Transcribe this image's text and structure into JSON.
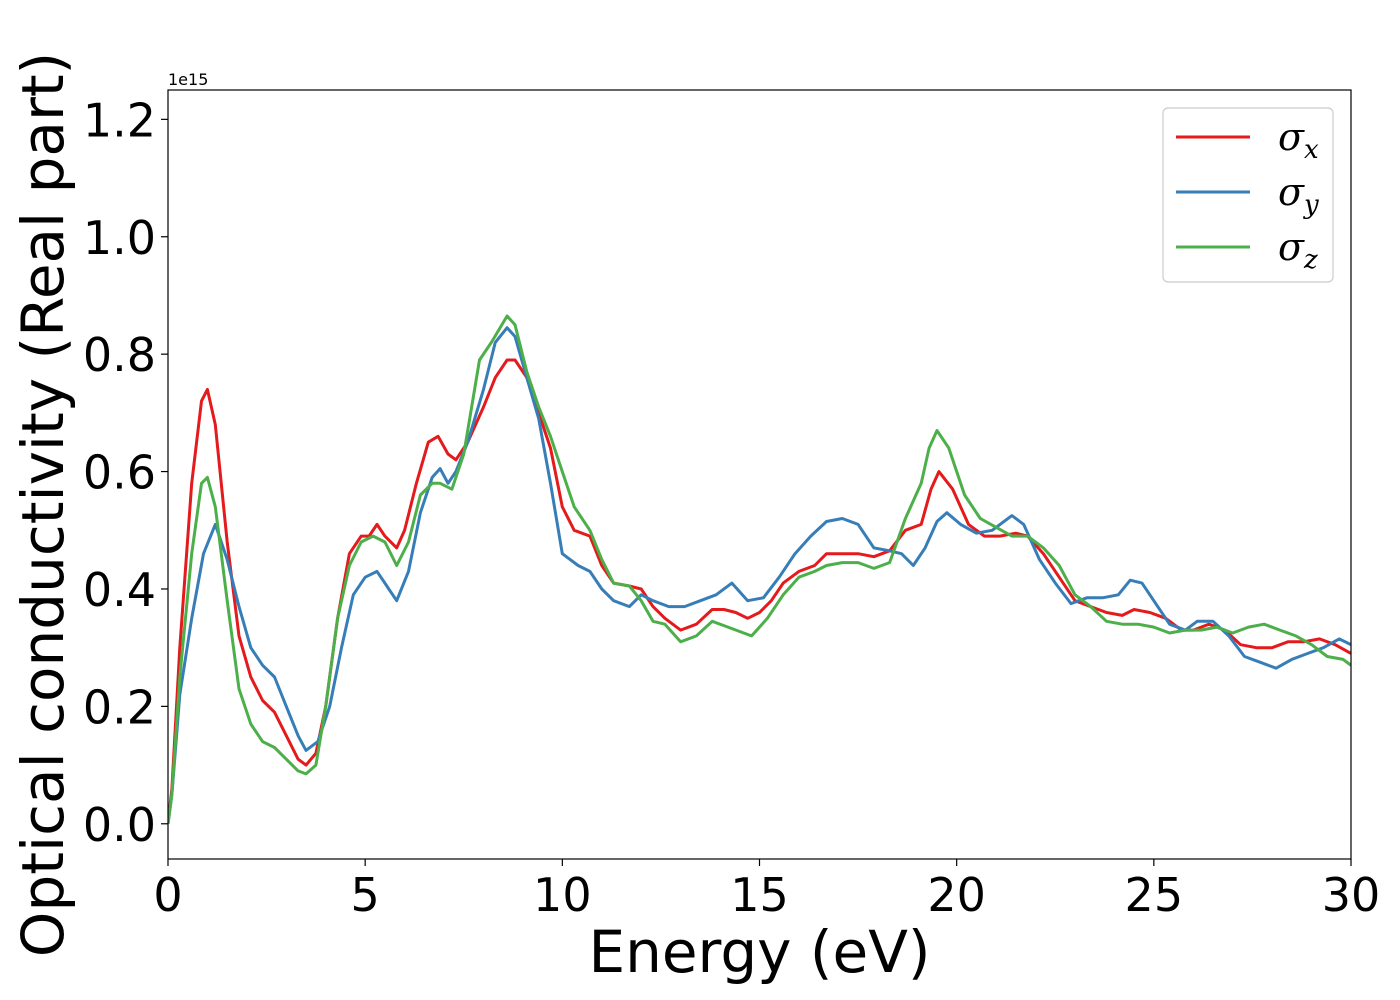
{
  "chart_data": {
    "type": "line",
    "xlabel": "Energy (eV)",
    "ylabel": "Optical conductivity (Real part)",
    "offset_text": "1e15",
    "xlim": [
      0,
      30
    ],
    "ylim": [
      -0.06,
      1.25
    ],
    "xticks": [
      0,
      5,
      10,
      15,
      20,
      25,
      30
    ],
    "xtick_labels": [
      "0",
      "5",
      "10",
      "15",
      "20",
      "25",
      "30"
    ],
    "yticks": [
      0.0,
      0.2,
      0.4,
      0.6,
      0.8,
      1.0,
      1.2
    ],
    "ytick_labels": [
      "0.0",
      "0.2",
      "0.4",
      "0.6",
      "0.8",
      "1.0",
      "1.2"
    ],
    "legend_position": "top-right",
    "grid": false,
    "series": [
      {
        "name": "σx",
        "symbol": "σ",
        "sub": "x",
        "color": "#e41a1c",
        "points": [
          [
            0,
            0.0
          ],
          [
            0.1,
            0.06
          ],
          [
            0.3,
            0.3
          ],
          [
            0.6,
            0.58
          ],
          [
            0.85,
            0.72
          ],
          [
            1.0,
            0.74
          ],
          [
            1.2,
            0.68
          ],
          [
            1.5,
            0.48
          ],
          [
            1.8,
            0.32
          ],
          [
            2.1,
            0.25
          ],
          [
            2.4,
            0.21
          ],
          [
            2.7,
            0.19
          ],
          [
            3.0,
            0.15
          ],
          [
            3.3,
            0.11
          ],
          [
            3.5,
            0.1
          ],
          [
            3.75,
            0.12
          ],
          [
            4.0,
            0.2
          ],
          [
            4.3,
            0.35
          ],
          [
            4.6,
            0.46
          ],
          [
            4.9,
            0.49
          ],
          [
            5.1,
            0.49
          ],
          [
            5.3,
            0.51
          ],
          [
            5.5,
            0.49
          ],
          [
            5.8,
            0.47
          ],
          [
            6.0,
            0.5
          ],
          [
            6.3,
            0.58
          ],
          [
            6.6,
            0.65
          ],
          [
            6.85,
            0.66
          ],
          [
            7.1,
            0.63
          ],
          [
            7.3,
            0.62
          ],
          [
            7.6,
            0.65
          ],
          [
            8.0,
            0.71
          ],
          [
            8.3,
            0.76
          ],
          [
            8.6,
            0.79
          ],
          [
            8.8,
            0.79
          ],
          [
            9.1,
            0.76
          ],
          [
            9.4,
            0.7
          ],
          [
            9.7,
            0.64
          ],
          [
            10.0,
            0.54
          ],
          [
            10.3,
            0.5
          ],
          [
            10.7,
            0.49
          ],
          [
            11.0,
            0.44
          ],
          [
            11.3,
            0.41
          ],
          [
            11.7,
            0.405
          ],
          [
            12.0,
            0.4
          ],
          [
            12.3,
            0.37
          ],
          [
            12.6,
            0.35
          ],
          [
            13.0,
            0.33
          ],
          [
            13.4,
            0.34
          ],
          [
            13.8,
            0.365
          ],
          [
            14.1,
            0.365
          ],
          [
            14.4,
            0.36
          ],
          [
            14.7,
            0.35
          ],
          [
            15.0,
            0.36
          ],
          [
            15.3,
            0.38
          ],
          [
            15.6,
            0.41
          ],
          [
            16.0,
            0.43
          ],
          [
            16.4,
            0.44
          ],
          [
            16.7,
            0.46
          ],
          [
            17.1,
            0.46
          ],
          [
            17.5,
            0.46
          ],
          [
            17.9,
            0.455
          ],
          [
            18.3,
            0.465
          ],
          [
            18.7,
            0.5
          ],
          [
            19.1,
            0.51
          ],
          [
            19.35,
            0.57
          ],
          [
            19.55,
            0.6
          ],
          [
            19.9,
            0.57
          ],
          [
            20.3,
            0.51
          ],
          [
            20.7,
            0.49
          ],
          [
            21.1,
            0.49
          ],
          [
            21.5,
            0.495
          ],
          [
            21.8,
            0.49
          ],
          [
            22.2,
            0.46
          ],
          [
            22.6,
            0.42
          ],
          [
            23.0,
            0.38
          ],
          [
            23.4,
            0.37
          ],
          [
            23.8,
            0.36
          ],
          [
            24.2,
            0.355
          ],
          [
            24.5,
            0.365
          ],
          [
            24.9,
            0.36
          ],
          [
            25.3,
            0.35
          ],
          [
            25.7,
            0.33
          ],
          [
            26.0,
            0.33
          ],
          [
            26.4,
            0.34
          ],
          [
            26.8,
            0.33
          ],
          [
            27.2,
            0.305
          ],
          [
            27.6,
            0.3
          ],
          [
            28.0,
            0.3
          ],
          [
            28.4,
            0.31
          ],
          [
            28.8,
            0.31
          ],
          [
            29.2,
            0.315
          ],
          [
            29.6,
            0.305
          ],
          [
            30.0,
            0.29
          ]
        ]
      },
      {
        "name": "σy",
        "symbol": "σ",
        "sub": "y",
        "color": "#377eb8",
        "points": [
          [
            0,
            0.0
          ],
          [
            0.1,
            0.05
          ],
          [
            0.3,
            0.22
          ],
          [
            0.6,
            0.35
          ],
          [
            0.9,
            0.46
          ],
          [
            1.2,
            0.51
          ],
          [
            1.5,
            0.45
          ],
          [
            1.8,
            0.37
          ],
          [
            2.1,
            0.3
          ],
          [
            2.4,
            0.27
          ],
          [
            2.7,
            0.25
          ],
          [
            3.0,
            0.2
          ],
          [
            3.3,
            0.15
          ],
          [
            3.5,
            0.125
          ],
          [
            3.8,
            0.14
          ],
          [
            4.1,
            0.2
          ],
          [
            4.4,
            0.3
          ],
          [
            4.7,
            0.39
          ],
          [
            5.0,
            0.42
          ],
          [
            5.3,
            0.43
          ],
          [
            5.6,
            0.4
          ],
          [
            5.8,
            0.38
          ],
          [
            6.1,
            0.43
          ],
          [
            6.4,
            0.53
          ],
          [
            6.7,
            0.59
          ],
          [
            6.9,
            0.605
          ],
          [
            7.1,
            0.58
          ],
          [
            7.3,
            0.6
          ],
          [
            7.6,
            0.65
          ],
          [
            8.0,
            0.74
          ],
          [
            8.3,
            0.82
          ],
          [
            8.6,
            0.845
          ],
          [
            8.8,
            0.83
          ],
          [
            9.1,
            0.76
          ],
          [
            9.4,
            0.69
          ],
          [
            9.7,
            0.58
          ],
          [
            10.0,
            0.46
          ],
          [
            10.4,
            0.44
          ],
          [
            10.7,
            0.43
          ],
          [
            11.0,
            0.4
          ],
          [
            11.3,
            0.38
          ],
          [
            11.7,
            0.37
          ],
          [
            12.0,
            0.39
          ],
          [
            12.3,
            0.38
          ],
          [
            12.7,
            0.37
          ],
          [
            13.1,
            0.37
          ],
          [
            13.5,
            0.38
          ],
          [
            13.9,
            0.39
          ],
          [
            14.3,
            0.41
          ],
          [
            14.7,
            0.38
          ],
          [
            15.1,
            0.385
          ],
          [
            15.5,
            0.42
          ],
          [
            15.9,
            0.46
          ],
          [
            16.3,
            0.49
          ],
          [
            16.7,
            0.515
          ],
          [
            17.1,
            0.52
          ],
          [
            17.5,
            0.51
          ],
          [
            17.9,
            0.47
          ],
          [
            18.3,
            0.465
          ],
          [
            18.6,
            0.46
          ],
          [
            18.9,
            0.44
          ],
          [
            19.2,
            0.47
          ],
          [
            19.5,
            0.515
          ],
          [
            19.75,
            0.53
          ],
          [
            20.1,
            0.51
          ],
          [
            20.5,
            0.495
          ],
          [
            20.9,
            0.5
          ],
          [
            21.4,
            0.525
          ],
          [
            21.7,
            0.51
          ],
          [
            22.1,
            0.45
          ],
          [
            22.5,
            0.41
          ],
          [
            22.9,
            0.375
          ],
          [
            23.3,
            0.385
          ],
          [
            23.7,
            0.385
          ],
          [
            24.1,
            0.39
          ],
          [
            24.4,
            0.415
          ],
          [
            24.7,
            0.41
          ],
          [
            25.0,
            0.38
          ],
          [
            25.4,
            0.34
          ],
          [
            25.8,
            0.33
          ],
          [
            26.1,
            0.345
          ],
          [
            26.5,
            0.345
          ],
          [
            26.9,
            0.32
          ],
          [
            27.3,
            0.285
          ],
          [
            27.7,
            0.275
          ],
          [
            28.1,
            0.265
          ],
          [
            28.5,
            0.28
          ],
          [
            28.9,
            0.29
          ],
          [
            29.3,
            0.3
          ],
          [
            29.7,
            0.315
          ],
          [
            30.0,
            0.305
          ]
        ]
      },
      {
        "name": "σz",
        "symbol": "σ",
        "sub": "z",
        "color": "#4daf4a",
        "points": [
          [
            0,
            0.0
          ],
          [
            0.1,
            0.05
          ],
          [
            0.3,
            0.25
          ],
          [
            0.6,
            0.46
          ],
          [
            0.85,
            0.58
          ],
          [
            1.0,
            0.59
          ],
          [
            1.2,
            0.54
          ],
          [
            1.5,
            0.38
          ],
          [
            1.8,
            0.23
          ],
          [
            2.1,
            0.17
          ],
          [
            2.4,
            0.14
          ],
          [
            2.7,
            0.13
          ],
          [
            3.0,
            0.11
          ],
          [
            3.3,
            0.09
          ],
          [
            3.5,
            0.085
          ],
          [
            3.75,
            0.1
          ],
          [
            4.0,
            0.2
          ],
          [
            4.3,
            0.35
          ],
          [
            4.6,
            0.44
          ],
          [
            4.9,
            0.48
          ],
          [
            5.2,
            0.49
          ],
          [
            5.5,
            0.48
          ],
          [
            5.8,
            0.44
          ],
          [
            6.1,
            0.48
          ],
          [
            6.4,
            0.56
          ],
          [
            6.7,
            0.58
          ],
          [
            6.9,
            0.58
          ],
          [
            7.2,
            0.57
          ],
          [
            7.5,
            0.63
          ],
          [
            7.9,
            0.79
          ],
          [
            8.2,
            0.82
          ],
          [
            8.6,
            0.865
          ],
          [
            8.8,
            0.85
          ],
          [
            9.1,
            0.77
          ],
          [
            9.4,
            0.71
          ],
          [
            9.7,
            0.66
          ],
          [
            10.0,
            0.6
          ],
          [
            10.3,
            0.54
          ],
          [
            10.7,
            0.5
          ],
          [
            11.0,
            0.45
          ],
          [
            11.3,
            0.41
          ],
          [
            11.7,
            0.405
          ],
          [
            12.0,
            0.38
          ],
          [
            12.3,
            0.345
          ],
          [
            12.6,
            0.34
          ],
          [
            13.0,
            0.31
          ],
          [
            13.4,
            0.32
          ],
          [
            13.8,
            0.345
          ],
          [
            14.2,
            0.335
          ],
          [
            14.6,
            0.325
          ],
          [
            14.8,
            0.32
          ],
          [
            15.2,
            0.35
          ],
          [
            15.6,
            0.39
          ],
          [
            16.0,
            0.42
          ],
          [
            16.4,
            0.43
          ],
          [
            16.7,
            0.44
          ],
          [
            17.1,
            0.445
          ],
          [
            17.5,
            0.445
          ],
          [
            17.9,
            0.435
          ],
          [
            18.3,
            0.445
          ],
          [
            18.7,
            0.52
          ],
          [
            19.1,
            0.58
          ],
          [
            19.3,
            0.64
          ],
          [
            19.5,
            0.67
          ],
          [
            19.8,
            0.64
          ],
          [
            20.2,
            0.56
          ],
          [
            20.6,
            0.52
          ],
          [
            21.0,
            0.505
          ],
          [
            21.4,
            0.49
          ],
          [
            21.8,
            0.49
          ],
          [
            22.2,
            0.47
          ],
          [
            22.6,
            0.44
          ],
          [
            23.0,
            0.39
          ],
          [
            23.4,
            0.37
          ],
          [
            23.8,
            0.345
          ],
          [
            24.2,
            0.34
          ],
          [
            24.6,
            0.34
          ],
          [
            25.0,
            0.335
          ],
          [
            25.4,
            0.325
          ],
          [
            25.8,
            0.33
          ],
          [
            26.2,
            0.33
          ],
          [
            26.6,
            0.335
          ],
          [
            27.0,
            0.325
          ],
          [
            27.4,
            0.335
          ],
          [
            27.8,
            0.34
          ],
          [
            28.2,
            0.33
          ],
          [
            28.6,
            0.32
          ],
          [
            29.0,
            0.305
          ],
          [
            29.4,
            0.285
          ],
          [
            29.8,
            0.28
          ],
          [
            30.0,
            0.27
          ]
        ]
      }
    ]
  }
}
